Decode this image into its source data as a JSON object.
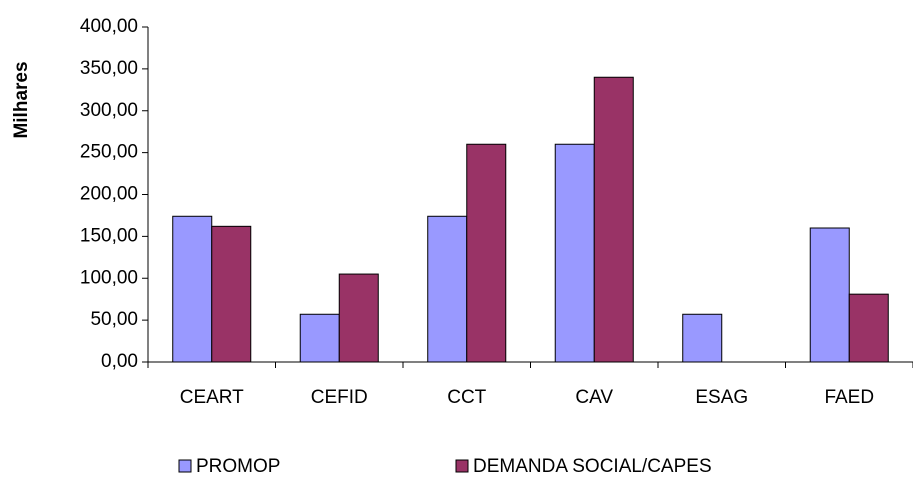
{
  "chart_data": {
    "type": "bar",
    "y_label": "Milhares",
    "categories": [
      "CEART",
      "CEFID",
      "CCT",
      "CAV",
      "ESAG",
      "FAED"
    ],
    "series": [
      {
        "name": "PROMOP",
        "color": "#9999ff",
        "values": [
          174,
          57,
          174,
          260,
          57,
          160
        ]
      },
      {
        "name": "DEMANDA SOCIAL/CAPES",
        "color": "#993366",
        "values": [
          162,
          105,
          260,
          340,
          0,
          81
        ]
      }
    ],
    "ylim": [
      0,
      400
    ],
    "yticks": [
      {
        "value": 0,
        "label": "0,00"
      },
      {
        "value": 50,
        "label": "50,00"
      },
      {
        "value": 100,
        "label": "100,00"
      },
      {
        "value": 150,
        "label": "150,00"
      },
      {
        "value": 200,
        "label": "200,00"
      },
      {
        "value": 250,
        "label": "250,00"
      },
      {
        "value": 300,
        "label": "300,00"
      },
      {
        "value": 350,
        "label": "350,00"
      },
      {
        "value": 400,
        "label": "400,00"
      }
    ],
    "grid": false,
    "legend": "bottom"
  }
}
